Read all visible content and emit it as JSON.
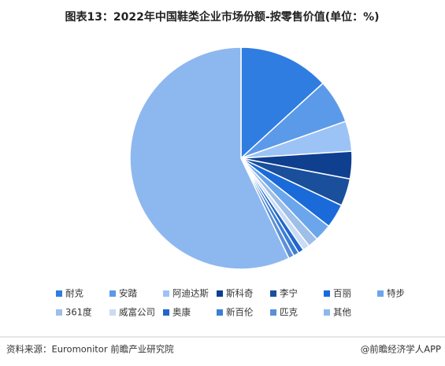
{
  "chart_data": {
    "type": "pie",
    "title": "图表13：2022年中国鞋类企业市场份额-按零售价值(单位：%)",
    "categories": [
      "耐克",
      "安踏",
      "阿迪达斯",
      "斯科奇",
      "李宁",
      "百丽",
      "特步",
      "361度",
      "威富公司",
      "奥康",
      "新百伦",
      "匹克",
      "其他"
    ],
    "values": [
      13.2,
      6.4,
      4.4,
      4.0,
      4.0,
      3.5,
      2.5,
      1.5,
      1.0,
      0.8,
      0.8,
      0.8,
      57.1
    ],
    "colors": [
      "#2f7de1",
      "#5b9ae8",
      "#9cc3f5",
      "#0f3f8f",
      "#1a4f9c",
      "#1a6bd9",
      "#6ba6ec",
      "#9dbfe9",
      "#c9dcf3",
      "#2266cc",
      "#3b7fd4",
      "#5d8fd6",
      "#8db8ef"
    ],
    "source": "资料来源：Euromonitor 前瞻产业研究院",
    "credit": "@前瞻经济学人APP"
  }
}
